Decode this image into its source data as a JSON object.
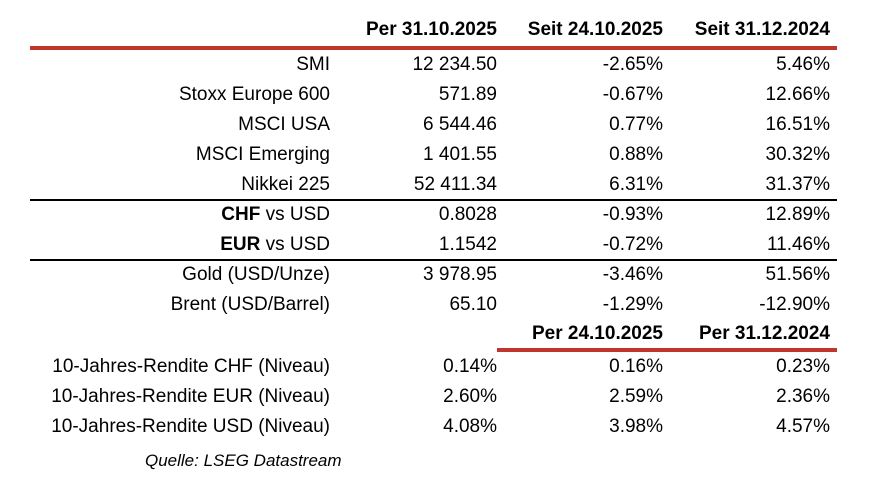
{
  "colors": {
    "accent_red": "#C2342E",
    "divider_black": "#000000",
    "text": "#000000",
    "background": "#FFFFFF"
  },
  "section1": {
    "headers": {
      "col1": "Per 31.10.2025",
      "col2": "Seit 24.10.2025",
      "col3": "Seit 31.12.2024"
    },
    "rows": [
      {
        "label_bold": "",
        "label_rest": "SMI",
        "v1": "12 234.50",
        "v2": "-2.65%",
        "v3": "5.46%"
      },
      {
        "label_bold": "",
        "label_rest": "Stoxx Europe 600",
        "v1": "571.89",
        "v2": "-0.67%",
        "v3": "12.66%"
      },
      {
        "label_bold": "",
        "label_rest": "MSCI USA",
        "v1": "6 544.46",
        "v2": "0.77%",
        "v3": "16.51%"
      },
      {
        "label_bold": "",
        "label_rest": "MSCI Emerging",
        "v1": "1 401.55",
        "v2": "0.88%",
        "v3": "30.32%"
      },
      {
        "label_bold": "",
        "label_rest": "Nikkei 225",
        "v1": "52 411.34",
        "v2": "6.31%",
        "v3": "31.37%"
      },
      {
        "label_bold": "CHF",
        "label_rest": " vs USD",
        "v1": "0.8028",
        "v2": "-0.93%",
        "v3": "12.89%"
      },
      {
        "label_bold": "EUR",
        "label_rest": " vs USD",
        "v1": "1.1542",
        "v2": "-0.72%",
        "v3": "11.46%"
      },
      {
        "label_bold": "",
        "label_rest": "Gold (USD/Unze)",
        "v1": "3 978.95",
        "v2": "-3.46%",
        "v3": "51.56%"
      },
      {
        "label_bold": "",
        "label_rest": "Brent (USD/Barrel)",
        "v1": "65.10",
        "v2": "-1.29%",
        "v3": "-12.90%"
      }
    ]
  },
  "section2": {
    "headers": {
      "col2": "Per 24.10.2025",
      "col3": "Per 31.12.2024"
    },
    "rows": [
      {
        "label": "10-Jahres-Rendite CHF (Niveau)",
        "v1": "0.14%",
        "v2": "0.16%",
        "v3": "0.23%"
      },
      {
        "label": "10-Jahres-Rendite EUR (Niveau)",
        "v1": "2.60%",
        "v2": "2.59%",
        "v3": "2.36%"
      },
      {
        "label": "10-Jahres-Rendite USD (Niveau)",
        "v1": "4.08%",
        "v2": "3.98%",
        "v3": "4.57%"
      }
    ]
  },
  "footer": {
    "source": "Quelle: LSEG Datastream"
  }
}
